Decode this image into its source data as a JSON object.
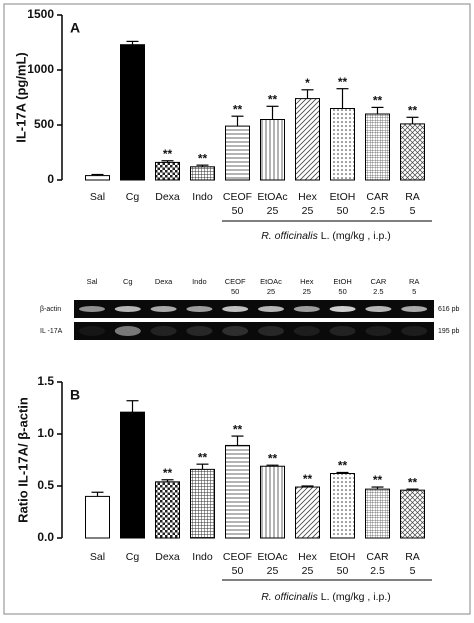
{
  "chart_data": [
    {
      "type": "bar",
      "panel": "A",
      "ylabel": "IL-17A (pg/mL)",
      "categories": [
        "Sal",
        "Cg",
        "Dexa",
        "Indo",
        "CEOF",
        "EtOAc",
        "Hex",
        "EtOH",
        "CAR",
        "RA"
      ],
      "doses": [
        null,
        null,
        null,
        null,
        "50",
        "25",
        "25",
        "50",
        "2.5",
        "5"
      ],
      "values": [
        40,
        1230,
        160,
        120,
        490,
        550,
        740,
        650,
        600,
        510
      ],
      "errors": [
        10,
        30,
        15,
        15,
        90,
        120,
        80,
        180,
        60,
        60
      ],
      "significance": [
        null,
        null,
        "**",
        "**",
        "**",
        "**",
        "*",
        "**",
        "**",
        "**"
      ],
      "group_label_species": "R. officinalis",
      "group_label_rest": "L. (mg/kg , i.p.)",
      "ylim": [
        0,
        1500
      ],
      "yticks": [
        0,
        500,
        1000,
        1500
      ]
    },
    {
      "type": "bar",
      "panel": "B",
      "ylabel": "Ratio IL-17A/ β-actin",
      "categories": [
        "Sal",
        "Cg",
        "Dexa",
        "Indo",
        "CEOF",
        "EtOAc",
        "Hex",
        "EtOH",
        "CAR",
        "RA"
      ],
      "doses": [
        null,
        null,
        null,
        null,
        "50",
        "25",
        "25",
        "50",
        "2.5",
        "5"
      ],
      "values": [
        0.4,
        1.21,
        0.54,
        0.66,
        0.89,
        0.69,
        0.49,
        0.62,
        0.47,
        0.46
      ],
      "errors": [
        0.04,
        0.11,
        0.02,
        0.05,
        0.09,
        0.01,
        0.01,
        0.01,
        0.02,
        0.01
      ],
      "significance": [
        null,
        null,
        "**",
        "**",
        "**",
        "**",
        "**",
        "**",
        "**",
        "**"
      ],
      "group_label_species": "R. officinalis",
      "group_label_rest": "L. (mg/kg , i.p.)",
      "ylim": [
        0,
        1.5
      ],
      "yticks": [
        {
          "value": 0,
          "label": "0.0"
        },
        0.5,
        {
          "value": 1,
          "label": "1.0"
        },
        1.5
      ]
    }
  ],
  "gel": {
    "lanes": [
      "Sal",
      "Cg",
      "Dexa",
      "Indo",
      "CEOF",
      "EtOAc",
      "Hex",
      "EtOH",
      "CAR",
      "RA"
    ],
    "doses": [
      null,
      null,
      null,
      null,
      "50",
      "25",
      "25",
      "50",
      "2.5",
      "5"
    ],
    "rows": [
      {
        "label": "β-actin",
        "size": "616 pb"
      },
      {
        "label": "IL -17A",
        "size": "195 pb"
      }
    ]
  }
}
